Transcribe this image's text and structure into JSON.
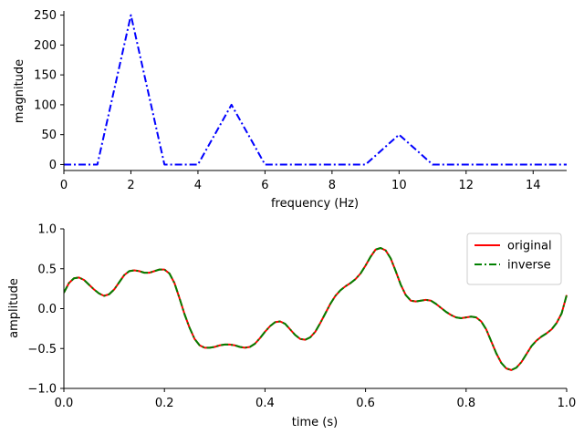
{
  "chart_data": [
    {
      "type": "line",
      "title": "",
      "xlabel": "frequency (Hz)",
      "ylabel": "magnitude",
      "xlim": [
        0,
        15
      ],
      "ylim": [
        -10,
        257
      ],
      "xticks": [
        0,
        2,
        4,
        6,
        8,
        10,
        12,
        14
      ],
      "yticks": [
        0,
        50,
        100,
        150,
        200,
        250
      ],
      "grid": false,
      "legend": null,
      "series": [
        {
          "line_style": "dash-dot",
          "color": "#0000ff",
          "x": [
            0,
            1,
            2,
            3,
            4,
            5,
            6,
            7,
            8,
            9,
            10,
            11,
            12,
            13,
            14,
            15
          ],
          "y": [
            0,
            0,
            250,
            0,
            0,
            100,
            0,
            0,
            0,
            0,
            50,
            0,
            0,
            0,
            0,
            0
          ]
        }
      ]
    },
    {
      "type": "line",
      "title": "",
      "xlabel": "time (s)",
      "ylabel": "amplitude",
      "xlim": [
        0,
        1
      ],
      "ylim": [
        -1,
        1
      ],
      "xticks": [
        0.0,
        0.2,
        0.4,
        0.6,
        0.8,
        1.0
      ],
      "yticks": [
        -1.0,
        -0.5,
        0.0,
        0.5,
        1.0
      ],
      "grid": false,
      "legend": "top-right",
      "series": [
        {
          "name": "original",
          "line_style": "solid",
          "color": "#ff0000",
          "x": [
            0,
            0.01,
            0.02,
            0.03,
            0.04,
            0.05,
            0.06,
            0.07,
            0.08,
            0.09,
            0.1,
            0.11,
            0.12,
            0.13,
            0.14,
            0.15,
            0.16,
            0.17,
            0.18,
            0.19,
            0.2,
            0.21,
            0.22,
            0.23,
            0.24,
            0.25,
            0.26,
            0.27,
            0.28,
            0.29,
            0.3,
            0.31,
            0.32,
            0.33,
            0.34,
            0.35,
            0.36,
            0.37,
            0.38,
            0.39,
            0.4,
            0.41,
            0.42,
            0.43,
            0.44,
            0.45,
            0.46,
            0.47,
            0.48,
            0.49,
            0.5,
            0.51,
            0.52,
            0.53,
            0.54,
            0.55,
            0.56,
            0.57,
            0.58,
            0.59,
            0.6,
            0.61,
            0.62,
            0.63,
            0.64,
            0.65,
            0.66,
            0.67,
            0.68,
            0.69,
            0.7,
            0.71,
            0.72,
            0.73,
            0.74,
            0.75,
            0.76,
            0.77,
            0.78,
            0.79,
            0.8,
            0.81,
            0.82,
            0.83,
            0.84,
            0.85,
            0.86,
            0.87,
            0.88,
            0.89,
            0.9,
            0.91,
            0.92,
            0.93,
            0.94,
            0.95,
            0.96,
            0.97,
            0.98,
            0.99,
            1.0
          ],
          "y": [
            0.2,
            0.32,
            0.38,
            0.39,
            0.36,
            0.3,
            0.24,
            0.19,
            0.16,
            0.18,
            0.24,
            0.33,
            0.42,
            0.47,
            0.48,
            0.47,
            0.45,
            0.45,
            0.47,
            0.49,
            0.49,
            0.44,
            0.32,
            0.13,
            -0.07,
            -0.24,
            -0.38,
            -0.46,
            -0.49,
            -0.49,
            -0.48,
            -0.46,
            -0.45,
            -0.45,
            -0.46,
            -0.48,
            -0.49,
            -0.48,
            -0.44,
            -0.37,
            -0.29,
            -0.22,
            -0.17,
            -0.16,
            -0.19,
            -0.26,
            -0.33,
            -0.38,
            -0.39,
            -0.36,
            -0.29,
            -0.18,
            -0.06,
            0.06,
            0.16,
            0.23,
            0.28,
            0.32,
            0.37,
            0.44,
            0.54,
            0.65,
            0.74,
            0.76,
            0.73,
            0.63,
            0.47,
            0.3,
            0.17,
            0.1,
            0.09,
            0.1,
            0.11,
            0.1,
            0.06,
            0.01,
            -0.04,
            -0.08,
            -0.11,
            -0.12,
            -0.11,
            -0.1,
            -0.11,
            -0.16,
            -0.26,
            -0.41,
            -0.56,
            -0.68,
            -0.75,
            -0.77,
            -0.74,
            -0.67,
            -0.57,
            -0.47,
            -0.4,
            -0.35,
            -0.31,
            -0.26,
            -0.18,
            -0.06,
            0.17
          ]
        },
        {
          "name": "inverse",
          "line_style": "dash-dot",
          "color": "#008000",
          "x": [
            0,
            0.01,
            0.02,
            0.03,
            0.04,
            0.05,
            0.06,
            0.07,
            0.08,
            0.09,
            0.1,
            0.11,
            0.12,
            0.13,
            0.14,
            0.15,
            0.16,
            0.17,
            0.18,
            0.19,
            0.2,
            0.21,
            0.22,
            0.23,
            0.24,
            0.25,
            0.26,
            0.27,
            0.28,
            0.29,
            0.3,
            0.31,
            0.32,
            0.33,
            0.34,
            0.35,
            0.36,
            0.37,
            0.38,
            0.39,
            0.4,
            0.41,
            0.42,
            0.43,
            0.44,
            0.45,
            0.46,
            0.47,
            0.48,
            0.49,
            0.5,
            0.51,
            0.52,
            0.53,
            0.54,
            0.55,
            0.56,
            0.57,
            0.58,
            0.59,
            0.6,
            0.61,
            0.62,
            0.63,
            0.64,
            0.65,
            0.66,
            0.67,
            0.68,
            0.69,
            0.7,
            0.71,
            0.72,
            0.73,
            0.74,
            0.75,
            0.76,
            0.77,
            0.78,
            0.79,
            0.8,
            0.81,
            0.82,
            0.83,
            0.84,
            0.85,
            0.86,
            0.87,
            0.88,
            0.89,
            0.9,
            0.91,
            0.92,
            0.93,
            0.94,
            0.95,
            0.96,
            0.97,
            0.98,
            0.99,
            1.0
          ],
          "y": [
            0.2,
            0.32,
            0.38,
            0.39,
            0.36,
            0.3,
            0.24,
            0.19,
            0.16,
            0.18,
            0.24,
            0.33,
            0.42,
            0.47,
            0.48,
            0.47,
            0.45,
            0.45,
            0.47,
            0.49,
            0.49,
            0.44,
            0.32,
            0.13,
            -0.07,
            -0.24,
            -0.38,
            -0.46,
            -0.49,
            -0.49,
            -0.48,
            -0.46,
            -0.45,
            -0.45,
            -0.46,
            -0.48,
            -0.49,
            -0.48,
            -0.44,
            -0.37,
            -0.29,
            -0.22,
            -0.17,
            -0.16,
            -0.19,
            -0.26,
            -0.33,
            -0.38,
            -0.39,
            -0.36,
            -0.29,
            -0.18,
            -0.06,
            0.06,
            0.16,
            0.23,
            0.28,
            0.32,
            0.37,
            0.44,
            0.54,
            0.65,
            0.74,
            0.76,
            0.73,
            0.63,
            0.47,
            0.3,
            0.17,
            0.1,
            0.09,
            0.1,
            0.11,
            0.1,
            0.06,
            0.01,
            -0.04,
            -0.08,
            -0.11,
            -0.12,
            -0.11,
            -0.1,
            -0.11,
            -0.16,
            -0.26,
            -0.41,
            -0.56,
            -0.68,
            -0.75,
            -0.77,
            -0.74,
            -0.67,
            -0.57,
            -0.47,
            -0.4,
            -0.35,
            -0.31,
            -0.26,
            -0.18,
            -0.06,
            0.17
          ]
        }
      ]
    }
  ]
}
